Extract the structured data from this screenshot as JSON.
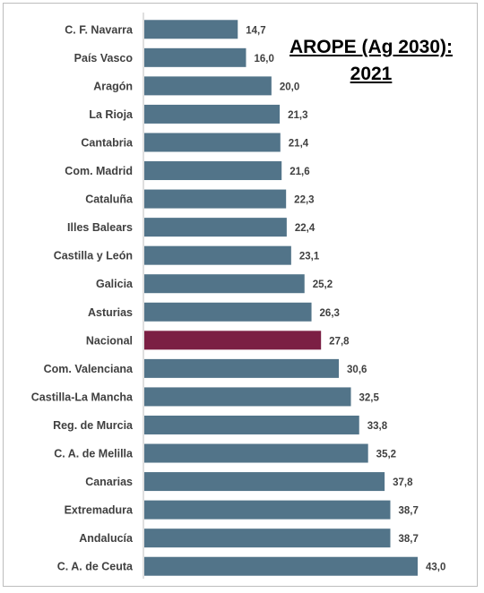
{
  "chart_data": {
    "type": "bar",
    "orientation": "horizontal",
    "title": "AROPE (Ag 2030):",
    "subtitle": "2021",
    "categories": [
      "C. F. Navarra",
      "País Vasco",
      "Aragón",
      "La Rioja",
      "Cantabria",
      "Com. Madrid",
      "Cataluña",
      "Illes Balears",
      "Castilla y León",
      "Galicia",
      "Asturias",
      "Nacional",
      "Com. Valenciana",
      "Castilla-La Mancha",
      "Reg. de Murcia",
      "C. A. de Melilla",
      "Canarias",
      "Extremadura",
      "Andalucía",
      "C. A. de Ceuta"
    ],
    "values": [
      14.7,
      16.0,
      20.0,
      21.3,
      21.4,
      21.6,
      22.3,
      22.4,
      23.1,
      25.2,
      26.3,
      27.8,
      30.6,
      32.5,
      33.8,
      35.2,
      37.8,
      38.7,
      38.7,
      43.0
    ],
    "value_labels": [
      "14,7",
      "16,0",
      "20,0",
      "21,3",
      "21,4",
      "21,6",
      "22,3",
      "22,4",
      "23,1",
      "25,2",
      "26,3",
      "27,8",
      "30,6",
      "32,5",
      "33,8",
      "35,2",
      "37,8",
      "38,7",
      "38,7",
      "43,0"
    ],
    "highlight_category": "Nacional",
    "colors": {
      "bar": "#527489",
      "highlight": "#7b1f44",
      "axis": "#bfbfbf",
      "text": "#404040"
    },
    "xlim": [
      0,
      43.0
    ],
    "grid": false,
    "legend": "none"
  }
}
